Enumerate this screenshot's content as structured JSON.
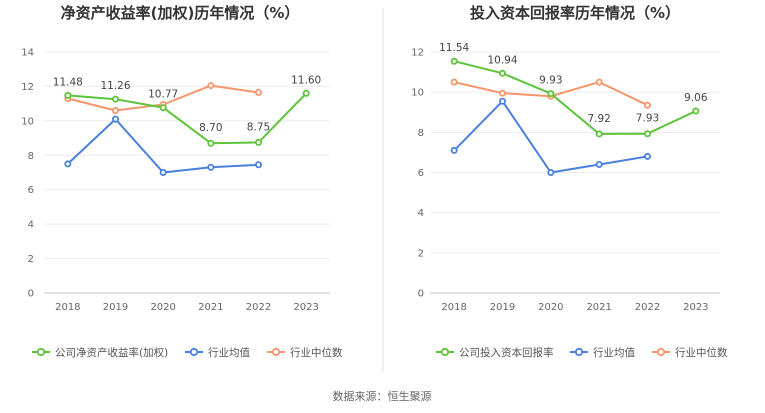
{
  "source": "数据来源：恒生聚源",
  "chart_data": [
    {
      "type": "line",
      "title": "净资产收益率(加权)历年情况（%）",
      "categories": [
        "2018",
        "2019",
        "2020",
        "2021",
        "2022",
        "2023"
      ],
      "ylim": [
        0,
        14
      ],
      "yticks": [
        0,
        2,
        4,
        6,
        8,
        10,
        12,
        14
      ],
      "grid": true,
      "legend_position": "bottom",
      "series": [
        {
          "name": "公司净资产收益率(加权)",
          "color": "#5cc33a",
          "values": [
            11.48,
            11.26,
            10.77,
            8.7,
            8.75,
            11.6
          ],
          "labels": [
            "11.48",
            "11.26",
            "10.77",
            "8.70",
            "8.75",
            "11.60"
          ]
        },
        {
          "name": "行业均值",
          "color": "#4a7fde",
          "values": [
            7.5,
            10.1,
            7.0,
            7.3,
            7.45,
            null
          ]
        },
        {
          "name": "行业中位数",
          "color": "#f5956a",
          "values": [
            11.3,
            10.6,
            10.95,
            12.05,
            11.65,
            null
          ]
        }
      ]
    },
    {
      "type": "line",
      "title": "投入资本回报率历年情况（%）",
      "categories": [
        "2018",
        "2019",
        "2020",
        "2021",
        "2022",
        "2023"
      ],
      "ylim": [
        0,
        12
      ],
      "yticks": [
        0,
        2,
        4,
        6,
        8,
        10,
        12
      ],
      "grid": true,
      "legend_position": "bottom",
      "series": [
        {
          "name": "公司投入资本回报率",
          "color": "#5cc33a",
          "values": [
            11.54,
            10.94,
            9.93,
            7.92,
            7.93,
            9.06
          ],
          "labels": [
            "11.54",
            "10.94",
            "9.93",
            "7.92",
            "7.93",
            "9.06"
          ]
        },
        {
          "name": "行业均值",
          "color": "#4a7fde",
          "values": [
            7.1,
            9.55,
            6.0,
            6.4,
            6.8,
            null
          ]
        },
        {
          "name": "行业中位数",
          "color": "#f5956a",
          "values": [
            10.5,
            9.95,
            9.8,
            10.5,
            9.35,
            null
          ]
        }
      ]
    }
  ]
}
